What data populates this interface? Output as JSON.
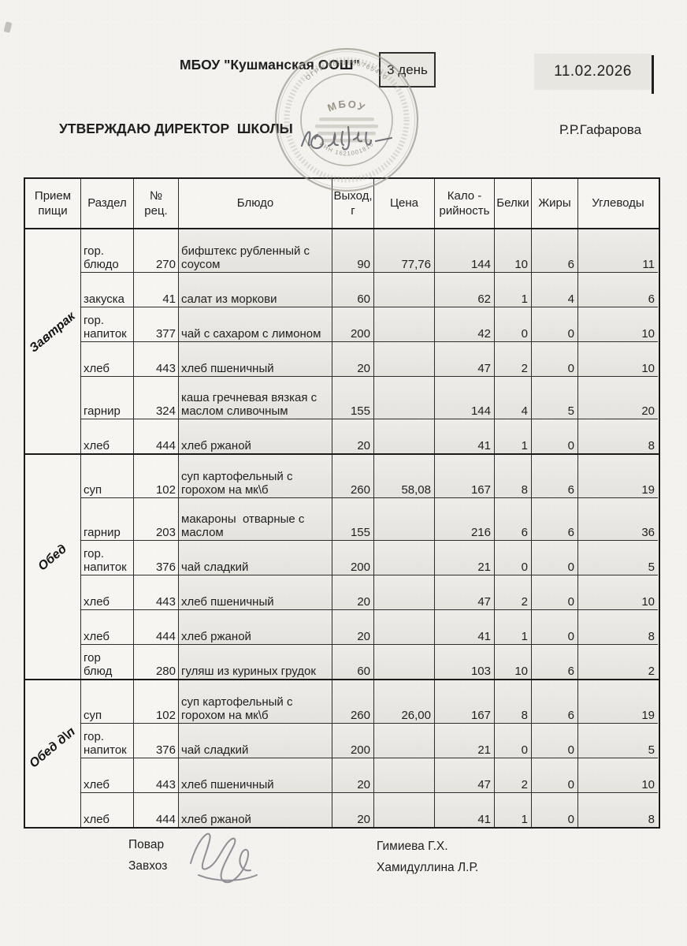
{
  "header": {
    "school": "МБОУ \"Кушманская ООШ\"",
    "day_badge": "3 день",
    "date": "11.02.2026",
    "approve_line": "УТВЕРЖДАЮ ДИРЕКТОР  ШКОЛЫ",
    "director_name": "Р.Р.Гафарова",
    "stamp": {
      "center_org": "МБОУ",
      "ogrn": "ОГРН 1021606765410",
      "inn": "ИНН 1621001810"
    }
  },
  "table": {
    "headers": [
      "Прием пищи",
      "Раздел",
      "№ рец.",
      "Блюдо",
      "Выход, г",
      "Цена",
      "Кало - рийность",
      "Белки",
      "Жиры",
      "Углеводы"
    ],
    "sections": [
      {
        "meal": "Завтрак",
        "rows": [
          {
            "razdel": "гор. блюдо",
            "rec": "270",
            "dish": "бифштекс рубленный с соусом",
            "out": "90",
            "price": "77,76",
            "cal": "144",
            "protein": "10",
            "fat": "6",
            "carbs": "11"
          },
          {
            "razdel": "закуска",
            "rec": "41",
            "dish": "салат из моркови",
            "out": "60",
            "price": "",
            "cal": "62",
            "protein": "1",
            "fat": "4",
            "carbs": "6"
          },
          {
            "razdel": "гор. напиток",
            "rec": "377",
            "dish": "чай с сахаром с лимоном",
            "out": "200",
            "price": "",
            "cal": "42",
            "protein": "0",
            "fat": "0",
            "carbs": "10"
          },
          {
            "razdel": "хлеб",
            "rec": "443",
            "dish": "хлеб пшеничный",
            "out": "20",
            "price": "",
            "cal": "47",
            "protein": "2",
            "fat": "0",
            "carbs": "10"
          },
          {
            "razdel": "гарнир",
            "rec": "324",
            "dish": "каша гречневая вязкая с маслом сливочным",
            "out": "155",
            "price": "",
            "cal": "144",
            "protein": "4",
            "fat": "5",
            "carbs": "20"
          },
          {
            "razdel": "хлеб",
            "rec": "444",
            "dish": "хлеб ржаной",
            "out": "20",
            "price": "",
            "cal": "41",
            "protein": "1",
            "fat": "0",
            "carbs": "8"
          }
        ]
      },
      {
        "meal": "Обед",
        "rows": [
          {
            "razdel": "суп",
            "rec": "102",
            "dish": "суп картофельный с горохом на мк\\б",
            "out": "260",
            "price": "58,08",
            "cal": "167",
            "protein": "8",
            "fat": "6",
            "carbs": "19"
          },
          {
            "razdel": "гарнир",
            "rec": "203",
            "dish": "макароны  отварные с маслом",
            "out": "155",
            "price": "",
            "cal": "216",
            "protein": "6",
            "fat": "6",
            "carbs": "36"
          },
          {
            "razdel": "гор. напиток",
            "rec": "376",
            "dish": "чай сладкий",
            "out": "200",
            "price": "",
            "cal": "21",
            "protein": "0",
            "fat": "0",
            "carbs": "5"
          },
          {
            "razdel": "хлеб",
            "rec": "443",
            "dish": "хлеб пшеничный",
            "out": "20",
            "price": "",
            "cal": "47",
            "protein": "2",
            "fat": "0",
            "carbs": "10"
          },
          {
            "razdel": "хлеб",
            "rec": "444",
            "dish": "хлеб ржаной",
            "out": "20",
            "price": "",
            "cal": "41",
            "protein": "1",
            "fat": "0",
            "carbs": "8"
          },
          {
            "razdel": "гор блюд",
            "rec": "280",
            "dish": "гуляш из куриных грудок",
            "out": "60",
            "price": "",
            "cal": "103",
            "protein": "10",
            "fat": "6",
            "carbs": "2"
          }
        ]
      },
      {
        "meal": "Обед д\\п",
        "rows": [
          {
            "razdel": "суп",
            "rec": "102",
            "dish": "суп картофельный с горохом на мк\\б",
            "out": "260",
            "price": "26,00",
            "cal": "167",
            "protein": "8",
            "fat": "6",
            "carbs": "19"
          },
          {
            "razdel": "гор. напиток",
            "rec": "376",
            "dish": "чай сладкий",
            "out": "200",
            "price": "",
            "cal": "21",
            "protein": "0",
            "fat": "0",
            "carbs": "5"
          },
          {
            "razdel": "хлеб",
            "rec": "443",
            "dish": "хлеб пшеничный",
            "out": "20",
            "price": "",
            "cal": "47",
            "protein": "2",
            "fat": "0",
            "carbs": "10"
          },
          {
            "razdel": "хлеб",
            "rec": "444",
            "dish": "хлеб ржаной",
            "out": "20",
            "price": "",
            "cal": "41",
            "protein": "1",
            "fat": "0",
            "carbs": "8"
          }
        ]
      }
    ]
  },
  "footer": {
    "cook_label": "Повар",
    "steward_label": "Завхоз",
    "cook_name": "Гимиева Г.Х.",
    "steward_name": "Хамидуллина Л.Р."
  },
  "colors": {
    "ink": "#1f1f1f",
    "stamp": "#9b958b",
    "signature": "#50505a",
    "shade": "#e7e5e0"
  }
}
